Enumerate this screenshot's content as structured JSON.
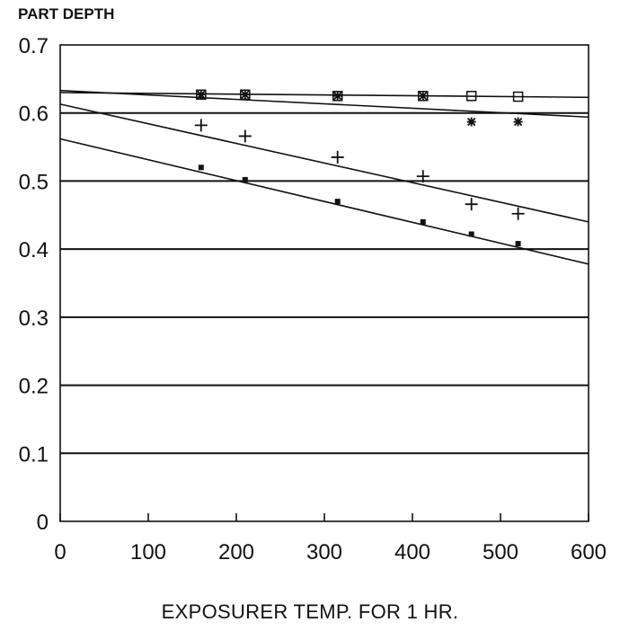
{
  "chart_data": {
    "type": "scatter",
    "title": "",
    "ylabel": "PART DEPTH",
    "xlabel": "EXPOSURER TEMP. FOR 1 HR.",
    "xlim": [
      0,
      600
    ],
    "ylim": [
      0,
      0.7
    ],
    "xticks": [
      "0",
      "100",
      "200",
      "300",
      "400",
      "500",
      "600"
    ],
    "yticks": [
      "0",
      "0.1",
      "0.2",
      "0.3",
      "0.4",
      "0.5",
      "0.6",
      "0.7"
    ],
    "grid": "horizontal",
    "series": [
      {
        "marker": "square",
        "x": [
          160,
          210,
          315,
          412,
          467,
          520
        ],
        "y": [
          0.627,
          0.627,
          0.625,
          0.625,
          0.625,
          0.624
        ]
      },
      {
        "marker": "asterisk",
        "x": [
          160,
          210,
          315,
          412,
          467,
          520
        ],
        "y": [
          0.627,
          0.627,
          0.625,
          0.625,
          0.587,
          0.587
        ]
      },
      {
        "marker": "plus",
        "x": [
          160,
          210,
          315,
          412,
          467,
          520
        ],
        "y": [
          0.582,
          0.566,
          0.535,
          0.507,
          0.466,
          0.452
        ]
      },
      {
        "marker": "filled-square",
        "x": [
          160,
          210,
          315,
          412,
          467,
          520
        ],
        "y": [
          0.52,
          0.502,
          0.47,
          0.44,
          0.422,
          0.408
        ]
      }
    ],
    "fit_lines": [
      {
        "x": [
          0,
          600
        ],
        "y": [
          0.633,
          0.594
        ]
      },
      {
        "x": [
          0,
          600
        ],
        "y": [
          0.63,
          0.623
        ]
      },
      {
        "x": [
          0,
          600
        ],
        "y": [
          0.613,
          0.44
        ]
      },
      {
        "x": [
          0,
          600
        ],
        "y": [
          0.562,
          0.378
        ]
      }
    ]
  }
}
